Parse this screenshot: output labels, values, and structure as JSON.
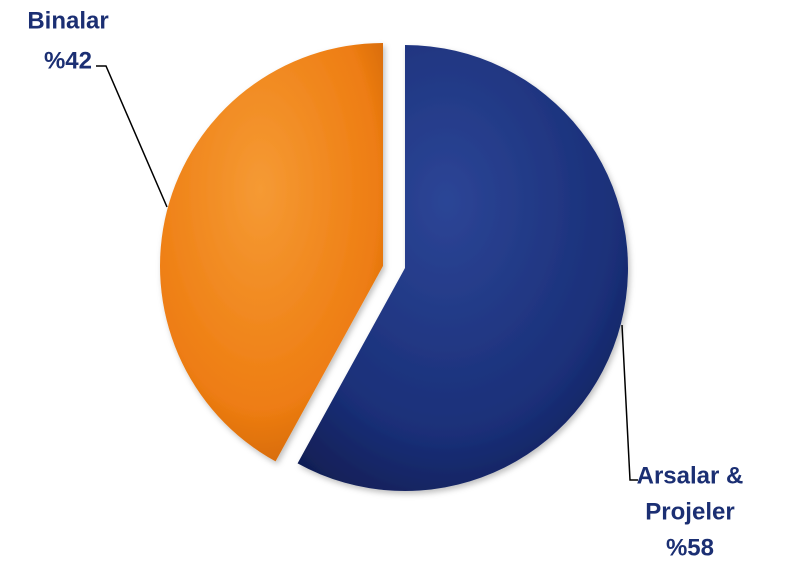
{
  "chart_data": {
    "type": "pie",
    "title": "",
    "slices": [
      {
        "label_lines": [
          "Arsalar &",
          "Projeler",
          "%58"
        ],
        "value": 58,
        "color": "#1a2f78"
      },
      {
        "label_lines": [
          "Binalar",
          "%42"
        ],
        "value": 42,
        "color": "#f07d12"
      }
    ],
    "start_angle_deg": 0,
    "direction": "clockwise",
    "exploded": true,
    "leader_line_color": "#000000"
  }
}
